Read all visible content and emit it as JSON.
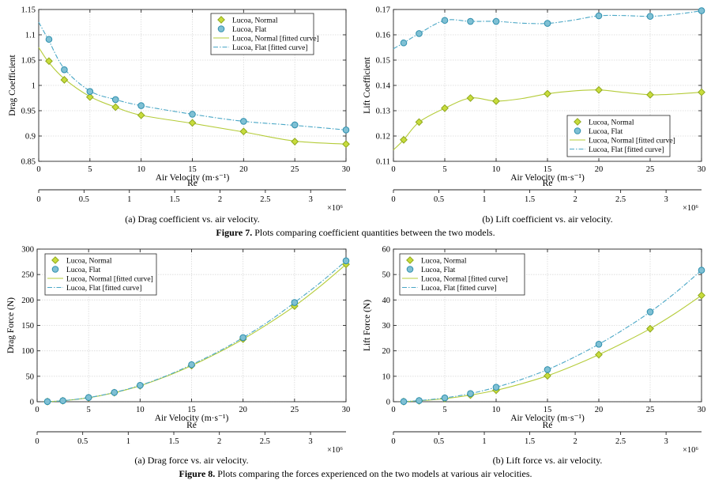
{
  "figure7_caption": {
    "label": "Figure 7.",
    "text": " Plots comparing coefficient quantities between the two models."
  },
  "figure8_caption": {
    "label": "Figure 8.",
    "text": " Plots comparing the forces experienced on the two models at various air velocities."
  },
  "legend_labels": [
    "Lucoa, Normal",
    "Lucoa, Flat",
    "Lucoa, Normal [fitted curve]",
    "Lucoa, Flat [fitted curve]"
  ],
  "colors": {
    "normal": "#c8dc3c",
    "normal_edge": "#8fa81e",
    "flat": "#7fc0d4",
    "flat_edge": "#2e8fae",
    "normal_line": "#b5cc3a",
    "flat_line": "#4aa7c6"
  },
  "chart_data": [
    {
      "type": "line",
      "caption": "(a) Drag coefficient vs. air velocity.",
      "xlabel": "Air Velocity (m·s⁻¹)",
      "ylabel": "Drag Coefficient",
      "xlim": [
        0,
        30
      ],
      "ylim": [
        0.85,
        1.15
      ],
      "x_ticks": [
        0,
        5,
        10,
        15,
        20,
        25,
        30
      ],
      "y_ticks": [
        0.85,
        0.9,
        0.95,
        1,
        1.05,
        1.1,
        1.15
      ],
      "x_tick_labels": [
        "0",
        "5",
        "10",
        "15",
        "20",
        "25",
        "30"
      ],
      "y_tick_labels": [
        "0.85",
        "0.9",
        "0.95",
        "1",
        "1.05",
        "1.1",
        "1.15"
      ],
      "secondary_axis": {
        "label": "Re",
        "exponent": "×10⁶",
        "ticks": [
          0,
          0.5,
          1,
          1.5,
          2,
          2.5,
          3
        ],
        "tick_labels": [
          "0",
          "0.5",
          "1",
          "1.5",
          "2",
          "2.5",
          "3"
        ],
        "max": 3.39
      },
      "legend": "top-right",
      "grid": true,
      "x": [
        1,
        2.5,
        5,
        7.5,
        10,
        15,
        20,
        25,
        30
      ],
      "series": [
        {
          "name": "Lucoa, Normal",
          "values": [
            1.048,
            1.011,
            0.977,
            0.957,
            0.941,
            0.926,
            0.909,
            0.889,
            0.884
          ]
        },
        {
          "name": "Lucoa, Flat",
          "values": [
            1.091,
            1.031,
            0.988,
            0.972,
            0.96,
            0.943,
            0.929,
            0.922,
            0.912
          ]
        }
      ],
      "fitted": [
        {
          "name": "Lucoa, Normal [fitted curve]",
          "x": [
            0,
            1,
            2.5,
            5,
            7.5,
            10,
            15,
            20,
            25,
            30
          ],
          "values": [
            1.075,
            1.045,
            1.013,
            0.978,
            0.957,
            0.941,
            0.925,
            0.908,
            0.89,
            0.884
          ]
        },
        {
          "name": "Lucoa, Flat [fitted curve]",
          "x": [
            0,
            1,
            2.5,
            5,
            7.5,
            10,
            15,
            20,
            25,
            30
          ],
          "values": [
            1.125,
            1.088,
            1.033,
            0.989,
            0.972,
            0.96,
            0.943,
            0.929,
            0.921,
            0.912
          ]
        }
      ]
    },
    {
      "type": "line",
      "caption": "(b) Lift coefficient vs. air velocity.",
      "xlabel": "Air Velocity (m·s⁻¹)",
      "ylabel": "Lift Coefficient",
      "xlim": [
        0,
        30
      ],
      "ylim": [
        0.11,
        0.17
      ],
      "x_ticks": [
        0,
        5,
        10,
        15,
        20,
        25,
        30
      ],
      "y_ticks": [
        0.11,
        0.12,
        0.13,
        0.14,
        0.15,
        0.16,
        0.17
      ],
      "x_tick_labels": [
        "0",
        "5",
        "10",
        "15",
        "20",
        "25",
        "30"
      ],
      "y_tick_labels": [
        "0.11",
        "0.12",
        "0.13",
        "0.14",
        "0.15",
        "0.16",
        "0.17"
      ],
      "secondary_axis": {
        "label": "Re",
        "exponent": "×10⁶",
        "ticks": [
          0,
          0.5,
          1,
          1.5,
          2,
          2.5,
          3
        ],
        "tick_labels": [
          "0",
          "0.5",
          "1",
          "1.5",
          "2",
          "2.5",
          "3"
        ],
        "max": 3.39
      },
      "legend": "bottom-right",
      "grid": true,
      "x": [
        1,
        2.5,
        5,
        7.5,
        10,
        15,
        20,
        25,
        30
      ],
      "series": [
        {
          "name": "Lucoa, Normal",
          "values": [
            0.1185,
            0.1255,
            0.131,
            0.135,
            0.1338,
            0.1367,
            0.1382,
            0.1363,
            0.1373
          ]
        },
        {
          "name": "Lucoa, Flat",
          "values": [
            0.1568,
            0.1605,
            0.1657,
            0.1653,
            0.1653,
            0.1645,
            0.1675,
            0.1673,
            0.1695
          ]
        }
      ],
      "fitted": [
        {
          "name": "Lucoa, Normal [fitted curve]",
          "x": [
            0,
            1,
            2.5,
            5,
            7.5,
            10,
            12.5,
            15,
            17.5,
            20,
            22.5,
            25,
            27.5,
            30
          ],
          "values": [
            0.1145,
            0.1185,
            0.1255,
            0.131,
            0.135,
            0.1338,
            0.1348,
            0.1367,
            0.1378,
            0.1382,
            0.1372,
            0.1363,
            0.1366,
            0.1373
          ]
        },
        {
          "name": "Lucoa, Flat [fitted curve]",
          "x": [
            0,
            1,
            2.5,
            5,
            7.5,
            10,
            12.5,
            15,
            17.5,
            20,
            22.5,
            25,
            27.5,
            30
          ],
          "values": [
            0.1545,
            0.1568,
            0.1605,
            0.1657,
            0.1653,
            0.1653,
            0.1646,
            0.1645,
            0.1658,
            0.1675,
            0.1676,
            0.1673,
            0.1681,
            0.1695
          ]
        }
      ]
    },
    {
      "type": "line",
      "caption": "(a) Drag force vs. air velocity.",
      "xlabel": "Air Velocity (m·s⁻¹)",
      "ylabel": "Drag Force (N)",
      "xlim": [
        0,
        30
      ],
      "ylim": [
        0,
        300
      ],
      "x_ticks": [
        0,
        5,
        10,
        15,
        20,
        25,
        30
      ],
      "y_ticks": [
        0,
        50,
        100,
        150,
        200,
        250,
        300
      ],
      "x_tick_labels": [
        "0",
        "5",
        "10",
        "15",
        "20",
        "25",
        "30"
      ],
      "y_tick_labels": [
        "0",
        "50",
        "100",
        "150",
        "200",
        "250",
        "300"
      ],
      "secondary_axis": {
        "label": "Re",
        "exponent": "×10⁶",
        "ticks": [
          0,
          0.5,
          1,
          1.5,
          2,
          2.5,
          3
        ],
        "tick_labels": [
          "0",
          "0.5",
          "1",
          "1.5",
          "2",
          "2.5",
          "3"
        ],
        "max": 3.39
      },
      "legend": "top-left",
      "grid": true,
      "x": [
        1,
        2.5,
        5,
        7.5,
        10,
        15,
        20,
        25,
        30
      ],
      "series": [
        {
          "name": "Lucoa, Normal",
          "values": [
            0.3,
            1.9,
            7.9,
            17.8,
            31.4,
            71,
            123,
            188,
            270
          ]
        },
        {
          "name": "Lucoa, Flat",
          "values": [
            0.3,
            2.0,
            8.2,
            18.2,
            32.2,
            72.8,
            126,
            195,
            277
          ]
        }
      ],
      "fitted": [
        {
          "name": "Lucoa, Normal [fitted curve]",
          "x": [
            1,
            2.5,
            5,
            7.5,
            10,
            12.5,
            15,
            17.5,
            20,
            22.5,
            25,
            27.5,
            30
          ],
          "values": [
            0.3,
            1.9,
            7.9,
            17.8,
            31.4,
            49.5,
            71,
            95.5,
            123,
            154,
            188,
            227,
            270
          ]
        },
        {
          "name": "Lucoa, Flat [fitted curve]",
          "x": [
            1,
            2.5,
            5,
            7.5,
            10,
            12.5,
            15,
            17.5,
            20,
            22.5,
            25,
            27.5,
            30
          ],
          "values": [
            0.3,
            2.0,
            8.2,
            18.2,
            32.2,
            50.5,
            72.8,
            97.5,
            126,
            158,
            195,
            234,
            277
          ]
        }
      ]
    },
    {
      "type": "line",
      "caption": "(b) Lift force vs. air velocity.",
      "xlabel": "Air Velocity (m·s⁻¹)",
      "ylabel": "Lift Force (N)",
      "xlim": [
        0,
        30
      ],
      "ylim": [
        0,
        60
      ],
      "x_ticks": [
        0,
        5,
        10,
        15,
        20,
        25,
        30
      ],
      "y_ticks": [
        0,
        10,
        20,
        30,
        40,
        50,
        60
      ],
      "x_tick_labels": [
        "0",
        "5",
        "10",
        "15",
        "20",
        "25",
        "30"
      ],
      "y_tick_labels": [
        "0",
        "10",
        "20",
        "30",
        "40",
        "50",
        "60"
      ],
      "secondary_axis": {
        "label": "Re",
        "exponent": "×10⁶",
        "ticks": [
          0,
          0.5,
          1,
          1.5,
          2,
          2.5,
          3
        ],
        "tick_labels": [
          "0",
          "0.5",
          "1",
          "1.5",
          "2",
          "2.5",
          "3"
        ],
        "max": 3.39
      },
      "legend": "top-left",
      "grid": true,
      "x": [
        1,
        2.5,
        5,
        7.5,
        10,
        15,
        20,
        25,
        30
      ],
      "series": [
        {
          "name": "Lucoa, Normal",
          "values": [
            0.05,
            0.35,
            1.2,
            2.6,
            4.5,
            10.2,
            18.5,
            28.7,
            41.8
          ]
        },
        {
          "name": "Lucoa, Flat",
          "values": [
            0.07,
            0.45,
            1.5,
            3.2,
            5.7,
            12.6,
            22.6,
            35.3,
            51.7
          ]
        }
      ],
      "fitted": [
        {
          "name": "Lucoa, Normal [fitted curve]",
          "x": [
            1,
            2.5,
            5,
            7.5,
            10,
            12.5,
            15,
            17.5,
            20,
            22.5,
            25,
            27.5,
            30
          ],
          "values": [
            0.05,
            0.35,
            1.2,
            2.6,
            4.5,
            7.1,
            10.2,
            14.1,
            18.5,
            23.4,
            28.7,
            34.9,
            41.8
          ]
        },
        {
          "name": "Lucoa, Flat [fitted curve]",
          "x": [
            1,
            2.5,
            5,
            7.5,
            10,
            12.5,
            15,
            17.5,
            20,
            22.5,
            25,
            27.5,
            30
          ],
          "values": [
            0.07,
            0.45,
            1.5,
            3.2,
            5.7,
            8.8,
            12.6,
            17.3,
            22.6,
            28.6,
            35.3,
            43.0,
            51.7
          ]
        }
      ]
    }
  ]
}
